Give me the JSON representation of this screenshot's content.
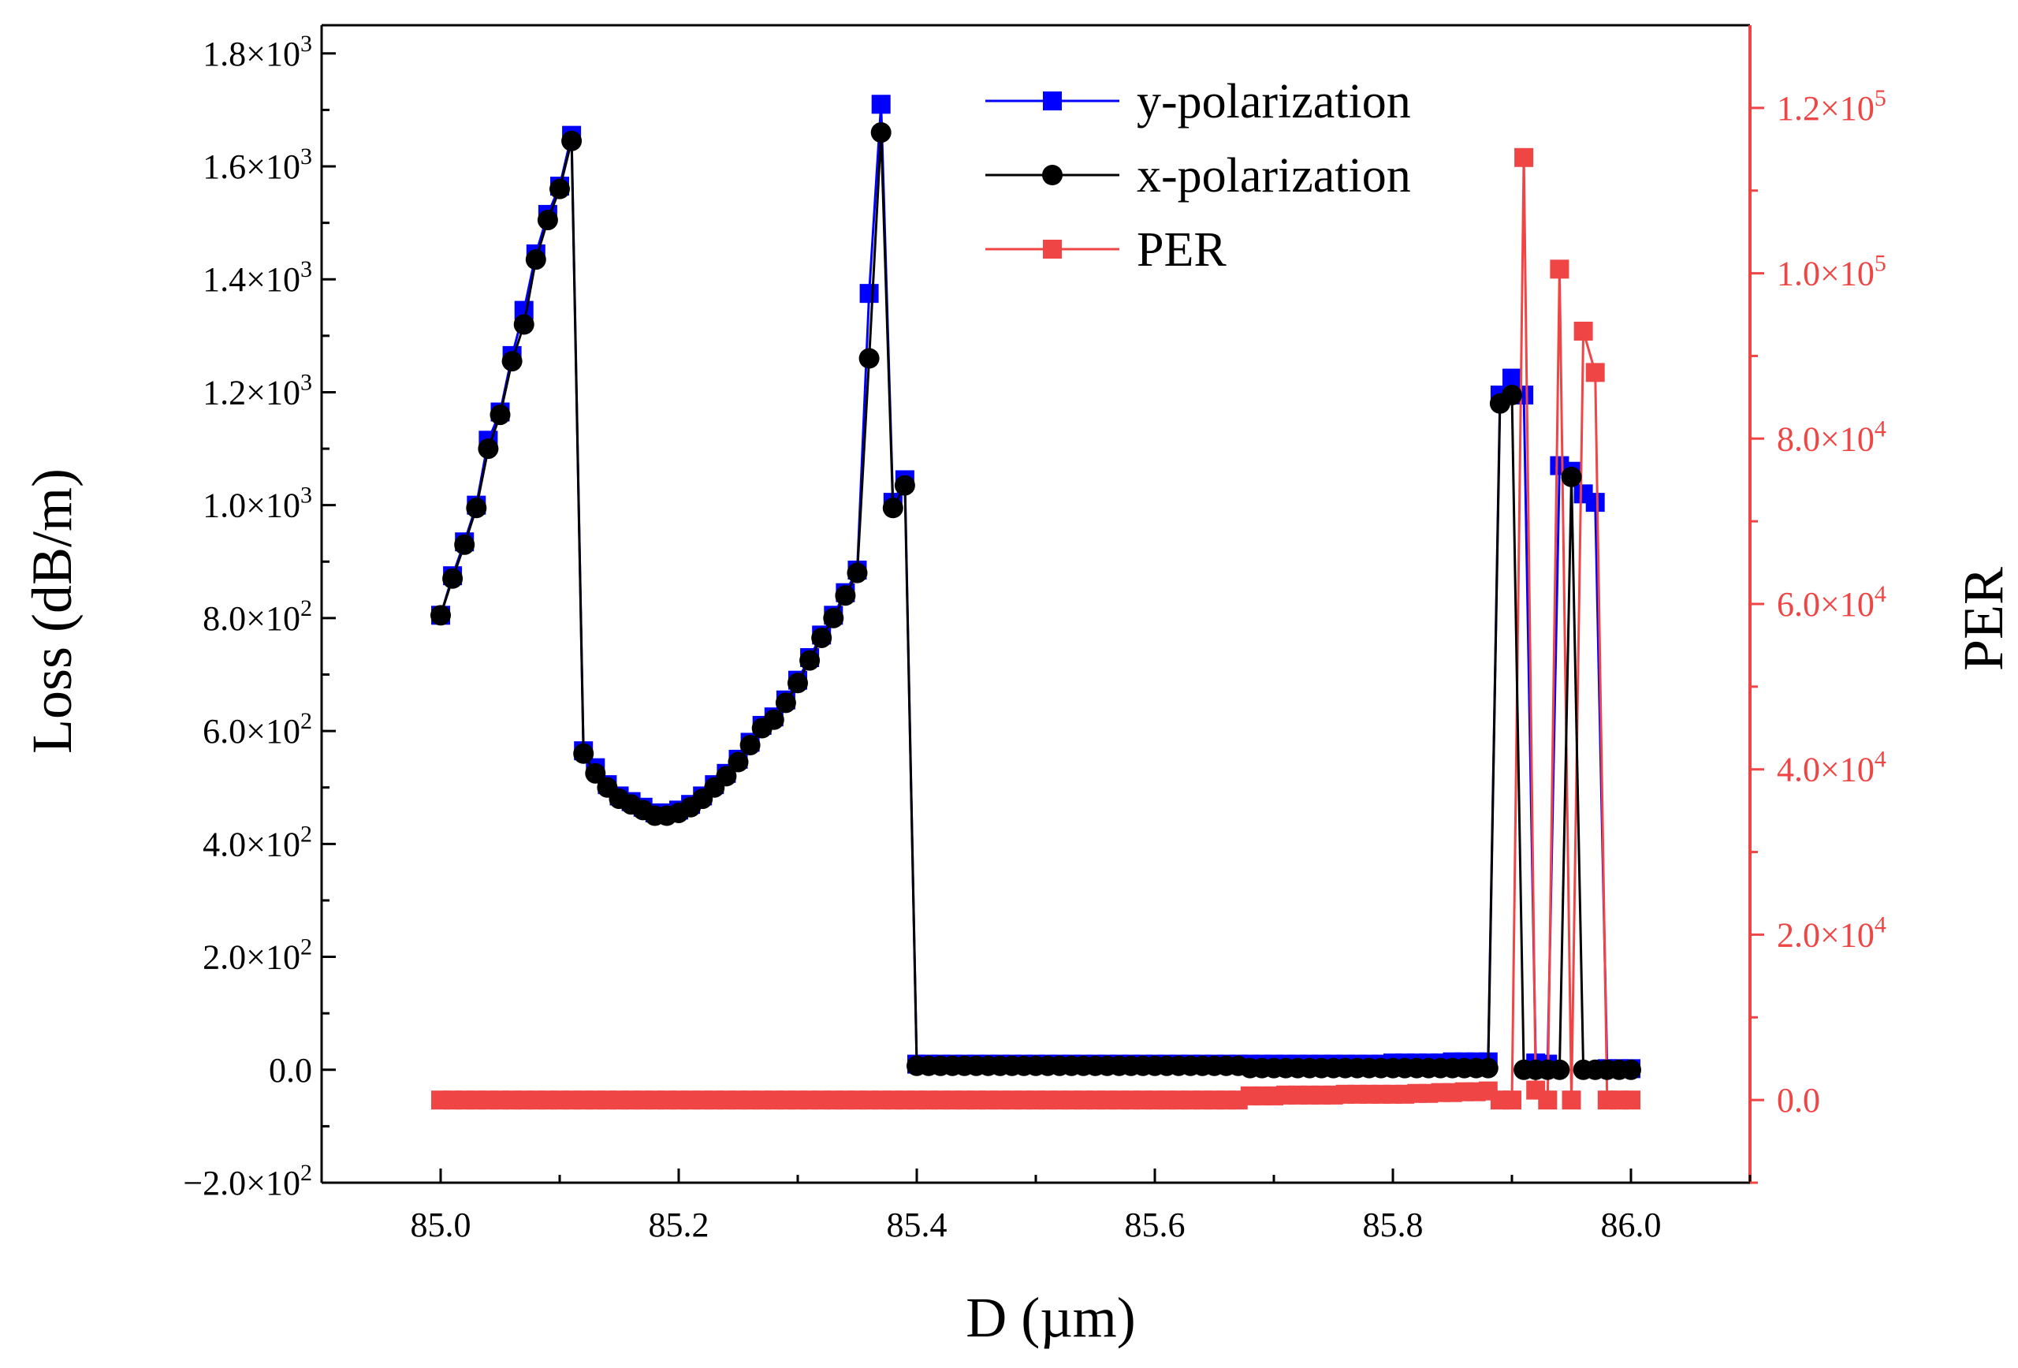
{
  "chart_data": {
    "type": "line",
    "xlabel": "D (µm)",
    "ylabel": "Loss (dB/m)",
    "y2label": "PER",
    "xlim": [
      84.9,
      86.1
    ],
    "ylim": [
      -200,
      1850
    ],
    "y2lim": [
      -10000,
      130000
    ],
    "x_ticks": [
      85.0,
      85.2,
      85.4,
      85.6,
      85.8,
      86.0
    ],
    "x_tick_labels": [
      "85.0",
      "85.2",
      "85.4",
      "85.6",
      "85.8",
      "86.0"
    ],
    "y_ticks": [
      {
        "value": -200,
        "mant": "−2.0×10",
        "exp": "2"
      },
      {
        "value": 0,
        "mant": "0.0",
        "exp": ""
      },
      {
        "value": 200,
        "mant": "2.0×10",
        "exp": "2"
      },
      {
        "value": 400,
        "mant": "4.0×10",
        "exp": "2"
      },
      {
        "value": 600,
        "mant": "6.0×10",
        "exp": "2"
      },
      {
        "value": 800,
        "mant": "8.0×10",
        "exp": "2"
      },
      {
        "value": 1000,
        "mant": "1.0×10",
        "exp": "3"
      },
      {
        "value": 1200,
        "mant": "1.2×10",
        "exp": "3"
      },
      {
        "value": 1400,
        "mant": "1.4×10",
        "exp": "3"
      },
      {
        "value": 1600,
        "mant": "1.6×10",
        "exp": "3"
      },
      {
        "value": 1800,
        "mant": "1.8×10",
        "exp": "3"
      }
    ],
    "y2_ticks": [
      {
        "value": 0,
        "mant": "0.0",
        "exp": ""
      },
      {
        "value": 20000,
        "mant": "2.0×10",
        "exp": "4"
      },
      {
        "value": 40000,
        "mant": "4.0×10",
        "exp": "4"
      },
      {
        "value": 60000,
        "mant": "6.0×10",
        "exp": "4"
      },
      {
        "value": 80000,
        "mant": "8.0×10",
        "exp": "4"
      },
      {
        "value": 100000,
        "mant": "1.0×10",
        "exp": "5"
      },
      {
        "value": 120000,
        "mant": "1.2×10",
        "exp": "5"
      }
    ],
    "legend": {
      "position": "top-right"
    },
    "series": [
      {
        "name": "y-polarization",
        "axis": "left",
        "color": "#0000ff",
        "marker": "square",
        "x": [
          85.0,
          85.01,
          85.02,
          85.03,
          85.04,
          85.05,
          85.06,
          85.07,
          85.08,
          85.09,
          85.1,
          85.11,
          85.12,
          85.13,
          85.14,
          85.15,
          85.16,
          85.17,
          85.18,
          85.19,
          85.2,
          85.21,
          85.22,
          85.23,
          85.24,
          85.25,
          85.26,
          85.27,
          85.28,
          85.29,
          85.3,
          85.31,
          85.32,
          85.33,
          85.34,
          85.35,
          85.36,
          85.37,
          85.38,
          85.39,
          85.4,
          85.41,
          85.42,
          85.43,
          85.44,
          85.45,
          85.46,
          85.47,
          85.48,
          85.49,
          85.5,
          85.51,
          85.52,
          85.53,
          85.54,
          85.55,
          85.56,
          85.57,
          85.58,
          85.59,
          85.6,
          85.61,
          85.62,
          85.63,
          85.64,
          85.65,
          85.66,
          85.67,
          85.68,
          85.69,
          85.7,
          85.71,
          85.72,
          85.73,
          85.74,
          85.75,
          85.76,
          85.77,
          85.78,
          85.79,
          85.8,
          85.81,
          85.82,
          85.83,
          85.84,
          85.85,
          85.86,
          85.87,
          85.88,
          85.89,
          85.9,
          85.91,
          85.92,
          85.93,
          85.94,
          85.95,
          85.96,
          85.97,
          85.98,
          85.99,
          86.0
        ],
        "values": [
          805,
          875,
          935,
          1000,
          1115,
          1165,
          1265,
          1345,
          1445,
          1515,
          1565,
          1655,
          565,
          535,
          505,
          485,
          475,
          465,
          455,
          455,
          460,
          470,
          485,
          505,
          525,
          550,
          580,
          610,
          625,
          655,
          690,
          730,
          770,
          805,
          845,
          885,
          1375,
          1710,
          1005,
          1045,
          10,
          10,
          10,
          10,
          10,
          10,
          10,
          10,
          10,
          10,
          10,
          10,
          10,
          10,
          10,
          10,
          10,
          10,
          10,
          10,
          10,
          10,
          10,
          10,
          10,
          10,
          10,
          10,
          10,
          10,
          10,
          10,
          10,
          10,
          10,
          10,
          10,
          10,
          10,
          10,
          12,
          12,
          12,
          12,
          12,
          14,
          14,
          14,
          14,
          1195,
          1225,
          1195,
          12,
          10,
          1070,
          1060,
          1020,
          1005,
          2,
          2,
          2
        ]
      },
      {
        "name": "x-polarization",
        "axis": "left",
        "color": "#000000",
        "marker": "circle",
        "x": [
          85.0,
          85.01,
          85.02,
          85.03,
          85.04,
          85.05,
          85.06,
          85.07,
          85.08,
          85.09,
          85.1,
          85.11,
          85.12,
          85.13,
          85.14,
          85.15,
          85.16,
          85.17,
          85.18,
          85.19,
          85.2,
          85.21,
          85.22,
          85.23,
          85.24,
          85.25,
          85.26,
          85.27,
          85.28,
          85.29,
          85.3,
          85.31,
          85.32,
          85.33,
          85.34,
          85.35,
          85.36,
          85.37,
          85.38,
          85.39,
          85.4,
          85.41,
          85.42,
          85.43,
          85.44,
          85.45,
          85.46,
          85.47,
          85.48,
          85.49,
          85.5,
          85.51,
          85.52,
          85.53,
          85.54,
          85.55,
          85.56,
          85.57,
          85.58,
          85.59,
          85.6,
          85.61,
          85.62,
          85.63,
          85.64,
          85.65,
          85.66,
          85.67,
          85.68,
          85.69,
          85.7,
          85.71,
          85.72,
          85.73,
          85.74,
          85.75,
          85.76,
          85.77,
          85.78,
          85.79,
          85.8,
          85.81,
          85.82,
          85.83,
          85.84,
          85.85,
          85.86,
          85.87,
          85.88,
          85.89,
          85.9,
          85.91,
          85.92,
          85.93,
          85.94,
          85.95,
          85.96,
          85.97,
          85.98,
          85.99,
          86.0
        ],
        "values": [
          805,
          870,
          930,
          995,
          1100,
          1160,
          1255,
          1320,
          1435,
          1505,
          1560,
          1645,
          560,
          525,
          500,
          480,
          470,
          460,
          450,
          450,
          455,
          465,
          480,
          500,
          520,
          545,
          575,
          605,
          620,
          650,
          685,
          725,
          765,
          800,
          840,
          880,
          1260,
          1660,
          995,
          1035,
          7,
          7,
          7,
          7,
          7,
          7,
          7,
          7,
          7,
          7,
          7,
          7,
          7,
          7,
          7,
          7,
          7,
          7,
          7,
          7,
          7,
          7,
          7,
          7,
          7,
          7,
          7,
          7,
          3,
          3,
          3,
          3,
          3,
          3,
          3,
          3,
          3,
          3,
          3,
          3,
          3,
          3,
          3,
          3,
          3,
          3,
          3,
          3,
          3,
          1180,
          1195,
          0,
          0,
          0,
          0,
          1050,
          0,
          0,
          0,
          0,
          0
        ]
      },
      {
        "name": "PER",
        "axis": "right",
        "color": "#f04545",
        "marker": "square",
        "x": [
          85.0,
          85.01,
          85.02,
          85.03,
          85.04,
          85.05,
          85.06,
          85.07,
          85.08,
          85.09,
          85.1,
          85.11,
          85.12,
          85.13,
          85.14,
          85.15,
          85.16,
          85.17,
          85.18,
          85.19,
          85.2,
          85.21,
          85.22,
          85.23,
          85.24,
          85.25,
          85.26,
          85.27,
          85.28,
          85.29,
          85.3,
          85.31,
          85.32,
          85.33,
          85.34,
          85.35,
          85.36,
          85.37,
          85.38,
          85.39,
          85.4,
          85.41,
          85.42,
          85.43,
          85.44,
          85.45,
          85.46,
          85.47,
          85.48,
          85.49,
          85.5,
          85.51,
          85.52,
          85.53,
          85.54,
          85.55,
          85.56,
          85.57,
          85.58,
          85.59,
          85.6,
          85.61,
          85.62,
          85.63,
          85.64,
          85.65,
          85.66,
          85.67,
          85.68,
          85.69,
          85.7,
          85.71,
          85.72,
          85.73,
          85.74,
          85.75,
          85.76,
          85.77,
          85.78,
          85.79,
          85.8,
          85.81,
          85.82,
          85.83,
          85.84,
          85.85,
          85.86,
          85.87,
          85.88,
          85.89,
          85.9,
          85.91,
          85.92,
          85.93,
          85.94,
          85.95,
          85.96,
          85.97,
          85.98,
          85.99,
          86.0
        ],
        "values": [
          0,
          0,
          0,
          0,
          0,
          0,
          0,
          0,
          0,
          0,
          0,
          0,
          0,
          0,
          0,
          0,
          0,
          0,
          0,
          0,
          0,
          0,
          0,
          0,
          0,
          0,
          0,
          0,
          0,
          0,
          0,
          0,
          0,
          0,
          0,
          0,
          0,
          0,
          0,
          0,
          0,
          0,
          0,
          0,
          0,
          0,
          0,
          0,
          0,
          0,
          0,
          0,
          0,
          0,
          0,
          0,
          0,
          0,
          0,
          0,
          0,
          0,
          0,
          0,
          0,
          0,
          0,
          0,
          500,
          500,
          500,
          600,
          600,
          600,
          600,
          600,
          700,
          700,
          700,
          700,
          700,
          700,
          800,
          800,
          900,
          900,
          1000,
          1000,
          1100,
          0,
          0,
          114000,
          1200,
          0,
          100500,
          0,
          93000,
          88000,
          0,
          0,
          0
        ]
      }
    ]
  }
}
